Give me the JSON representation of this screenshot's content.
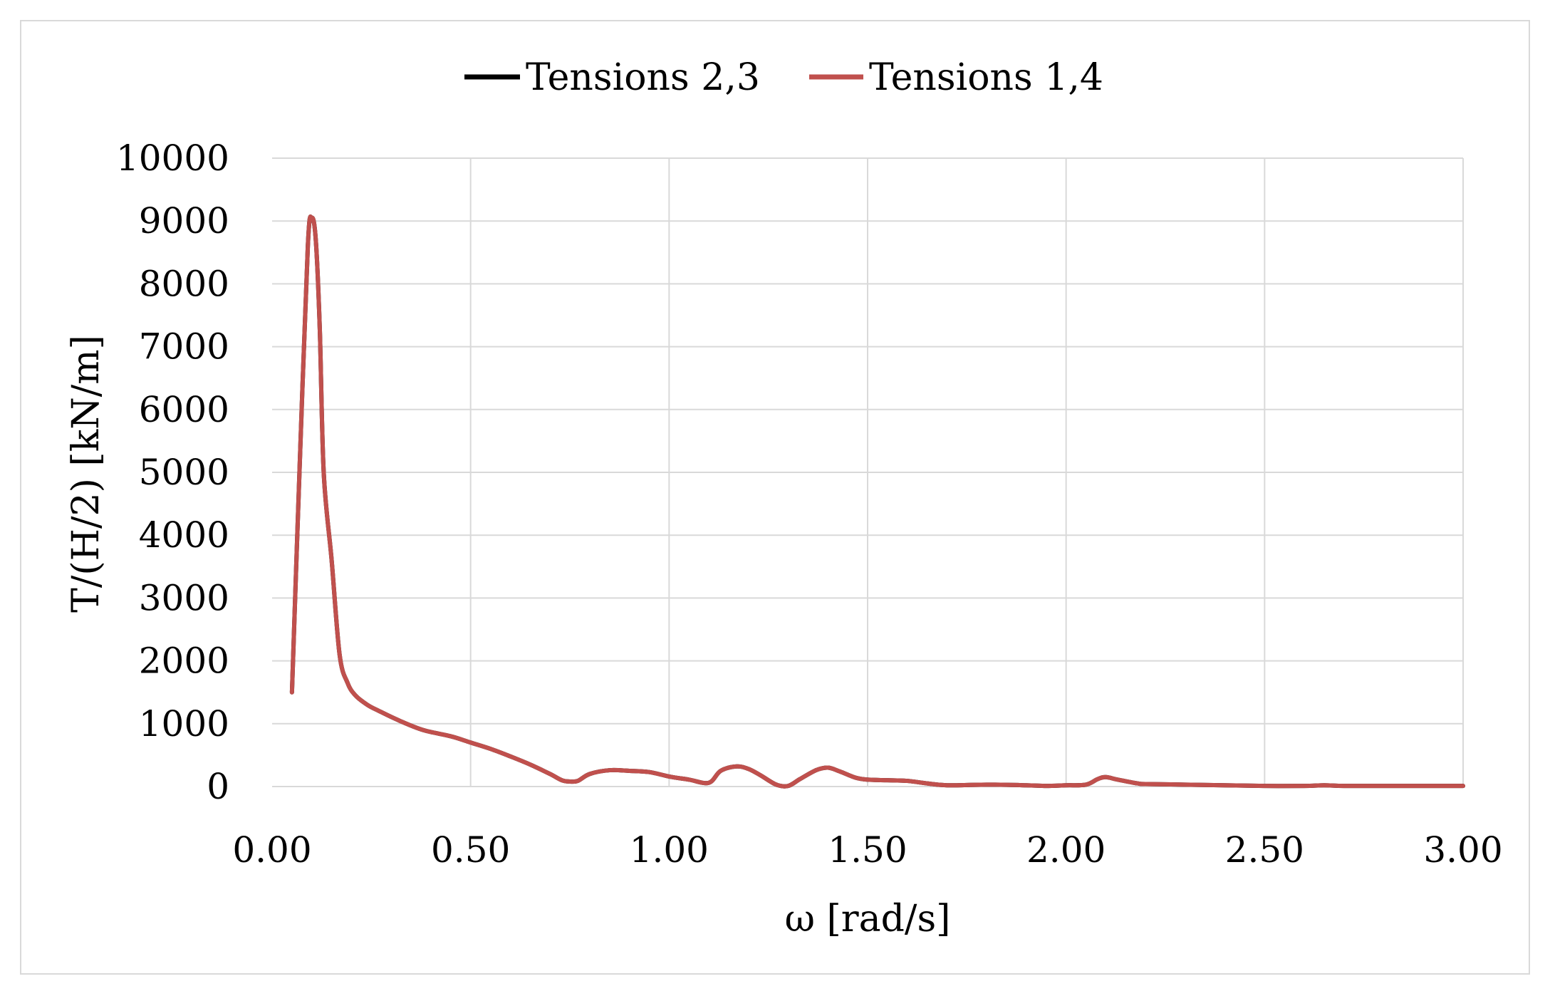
{
  "chart_data": {
    "type": "line",
    "title": "",
    "xlabel": "ω [rad/s]",
    "ylabel": "T/(H/2)  [kN/m]",
    "xlim": [
      0,
      3
    ],
    "ylim": [
      0,
      10000
    ],
    "x_ticks": [
      "0.00",
      "0.50",
      "1.00",
      "1.50",
      "2.00",
      "2.50",
      "3.00"
    ],
    "y_ticks": [
      "0",
      "1000",
      "2000",
      "3000",
      "4000",
      "5000",
      "6000",
      "7000",
      "8000",
      "9000",
      "10000"
    ],
    "grid": true,
    "legend_position": "top-center",
    "series": [
      {
        "name": "Tensions 2,3",
        "color": "#000000",
        "x": [
          0.05,
          0.07,
          0.09,
          0.1,
          0.11,
          0.12,
          0.13,
          0.15,
          0.17,
          0.19,
          0.21,
          0.24,
          0.27,
          0.32,
          0.38,
          0.45,
          0.5,
          0.55,
          0.6,
          0.65,
          0.7,
          0.73,
          0.75,
          0.77,
          0.8,
          0.85,
          0.9,
          0.95,
          1.0,
          1.05,
          1.1,
          1.13,
          1.17,
          1.2,
          1.23,
          1.27,
          1.3,
          1.33,
          1.37,
          1.4,
          1.43,
          1.47,
          1.5,
          1.55,
          1.6,
          1.65,
          1.7,
          1.8,
          1.9,
          1.95,
          2.0,
          2.05,
          2.08,
          2.1,
          2.13,
          2.18,
          2.2,
          2.3,
          2.4,
          2.5,
          2.6,
          2.65,
          2.7,
          2.8,
          2.9,
          3.0
        ],
        "y": [
          1500,
          5200,
          8600,
          9050,
          8700,
          7300,
          5000,
          3600,
          2100,
          1650,
          1450,
          1300,
          1200,
          1050,
          900,
          800,
          700,
          600,
          480,
          350,
          200,
          100,
          80,
          90,
          200,
          260,
          250,
          230,
          160,
          110,
          60,
          250,
          320,
          280,
          180,
          30,
          10,
          120,
          260,
          300,
          240,
          140,
          110,
          100,
          90,
          50,
          20,
          30,
          20,
          10,
          20,
          30,
          120,
          150,
          110,
          50,
          40,
          30,
          20,
          10,
          10,
          20,
          10,
          10,
          10,
          10
        ]
      },
      {
        "name": "Tensions 1,4",
        "color": "#c0504d",
        "x": [
          0.05,
          0.07,
          0.09,
          0.1,
          0.11,
          0.12,
          0.13,
          0.15,
          0.17,
          0.19,
          0.21,
          0.24,
          0.27,
          0.32,
          0.38,
          0.45,
          0.5,
          0.55,
          0.6,
          0.65,
          0.7,
          0.73,
          0.75,
          0.77,
          0.8,
          0.85,
          0.9,
          0.95,
          1.0,
          1.05,
          1.1,
          1.13,
          1.17,
          1.2,
          1.23,
          1.27,
          1.3,
          1.33,
          1.37,
          1.4,
          1.43,
          1.47,
          1.5,
          1.55,
          1.6,
          1.65,
          1.7,
          1.8,
          1.9,
          1.95,
          2.0,
          2.05,
          2.08,
          2.1,
          2.13,
          2.18,
          2.2,
          2.3,
          2.4,
          2.5,
          2.6,
          2.65,
          2.7,
          2.8,
          2.9,
          3.0
        ],
        "y": [
          1500,
          5200,
          8600,
          9050,
          8700,
          7300,
          5000,
          3600,
          2100,
          1650,
          1450,
          1300,
          1200,
          1050,
          900,
          800,
          700,
          600,
          480,
          350,
          200,
          100,
          80,
          90,
          200,
          260,
          250,
          230,
          160,
          110,
          60,
          250,
          320,
          280,
          180,
          30,
          10,
          120,
          260,
          300,
          240,
          140,
          110,
          100,
          90,
          50,
          20,
          30,
          20,
          10,
          20,
          30,
          120,
          150,
          110,
          50,
          40,
          30,
          20,
          10,
          10,
          20,
          10,
          10,
          10,
          10
        ]
      }
    ]
  }
}
